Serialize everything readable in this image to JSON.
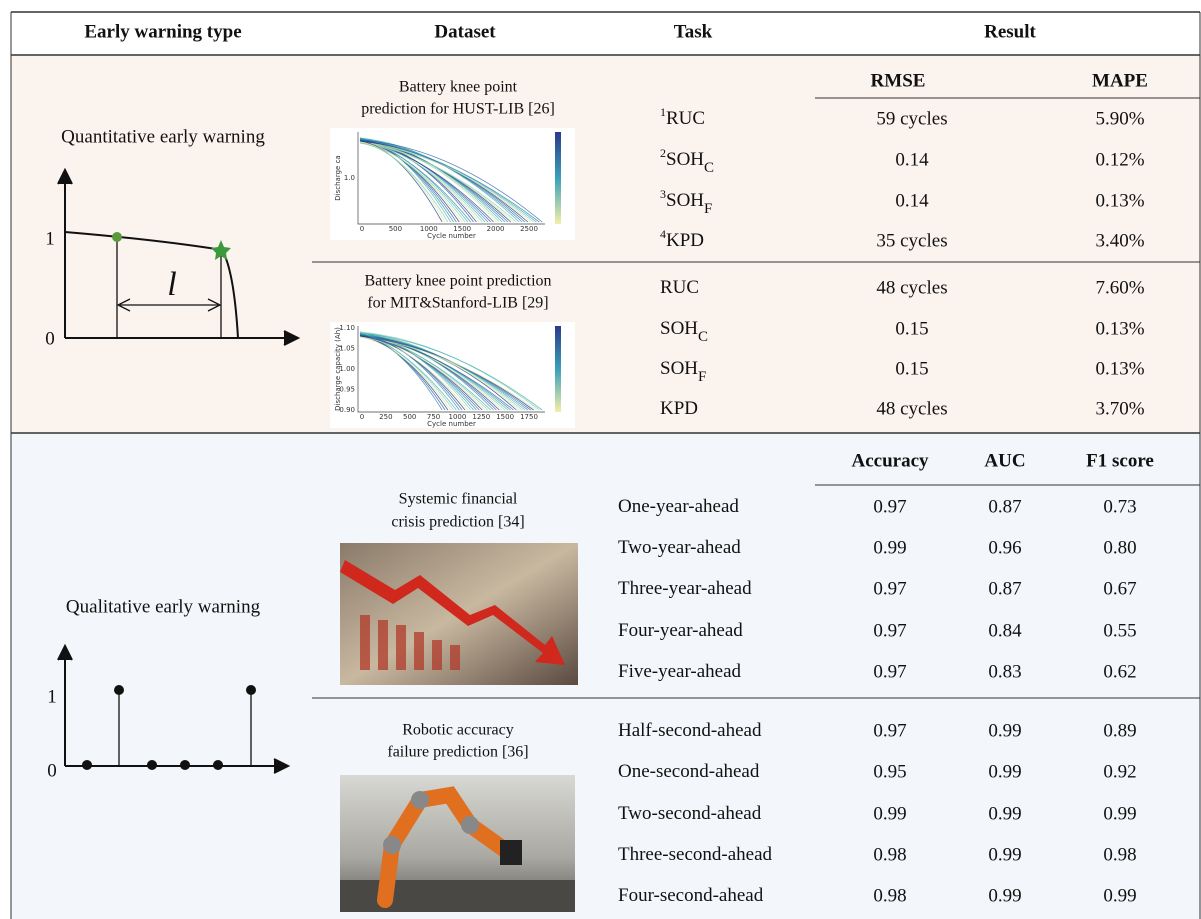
{
  "header": {
    "columns": [
      "Early warning type",
      "Dataset",
      "Task",
      "Result"
    ]
  },
  "quantitative": {
    "label": "Quantitative early warning",
    "diagram": {
      "y_high": "1",
      "y_low": "0",
      "interval": "l"
    },
    "metrics": [
      "RMSE",
      "MAPE"
    ],
    "datasets": [
      {
        "title": [
          "Battery knee point",
          "prediction for HUST-LIB [26]"
        ],
        "thumbnail": {
          "xlabel": "Cycle number",
          "ylabel": "Discharge ca",
          "xticks": [
            "0",
            "500",
            "1000",
            "1500",
            "2000",
            "2500"
          ],
          "yticks": [
            "1.0"
          ]
        },
        "rows": [
          {
            "task": {
              "note": "1",
              "name": "RUC"
            },
            "values": [
              "59 cycles",
              "5.90%"
            ]
          },
          {
            "task": {
              "note": "2",
              "name": "SOH",
              "sub": "C"
            },
            "values": [
              "0.14",
              "0.12%"
            ]
          },
          {
            "task": {
              "note": "3",
              "name": "SOH",
              "sub": "F"
            },
            "values": [
              "0.14",
              "0.13%"
            ]
          },
          {
            "task": {
              "note": "4",
              "name": "KPD"
            },
            "values": [
              "35 cycles",
              "3.40%"
            ]
          }
        ]
      },
      {
        "title": [
          "Battery knee point prediction",
          "for MIT&Stanford-LIB [29]"
        ],
        "thumbnail": {
          "xlabel": "Cycle number",
          "ylabel": "Discharge capacity (Ah)",
          "xticks": [
            "0",
            "250",
            "500",
            "750",
            "1000",
            "1250",
            "1500",
            "1750"
          ],
          "yticks": [
            "0.90",
            "0.95",
            "1.00",
            "1.05",
            "1.10"
          ]
        },
        "rows": [
          {
            "task": {
              "name": "RUC"
            },
            "values": [
              "48 cycles",
              "7.60%"
            ]
          },
          {
            "task": {
              "name": "SOH",
              "sub": "C"
            },
            "values": [
              "0.15",
              "0.13%"
            ]
          },
          {
            "task": {
              "name": "SOH",
              "sub": "F"
            },
            "values": [
              "0.15",
              "0.13%"
            ]
          },
          {
            "task": {
              "name": "KPD"
            },
            "values": [
              "48 cycles",
              "3.70%"
            ]
          }
        ]
      }
    ]
  },
  "qualitative": {
    "label": "Qualitative early warning",
    "diagram": {
      "y_high": "1",
      "y_low": "0"
    },
    "metrics": [
      "Accuracy",
      "AUC",
      "F1 score"
    ],
    "datasets": [
      {
        "title": [
          "Systemic financial",
          "crisis prediction [34]"
        ],
        "rows": [
          {
            "task": {
              "name": "One-year-ahead"
            },
            "values": [
              "0.97",
              "0.87",
              "0.73"
            ]
          },
          {
            "task": {
              "name": "Two-year-ahead"
            },
            "values": [
              "0.99",
              "0.96",
              "0.80"
            ]
          },
          {
            "task": {
              "name": "Three-year-ahead"
            },
            "values": [
              "0.97",
              "0.87",
              "0.67"
            ]
          },
          {
            "task": {
              "name": "Four-year-ahead"
            },
            "values": [
              "0.97",
              "0.84",
              "0.55"
            ]
          },
          {
            "task": {
              "name": "Five-year-ahead"
            },
            "values": [
              "0.97",
              "0.83",
              "0.62"
            ]
          }
        ]
      },
      {
        "title": [
          "Robotic accuracy",
          "failure prediction [36]"
        ],
        "rows": [
          {
            "task": {
              "name": "Half-second-ahead"
            },
            "values": [
              "0.97",
              "0.99",
              "0.89"
            ]
          },
          {
            "task": {
              "name": "One-second-ahead"
            },
            "values": [
              "0.95",
              "0.99",
              "0.92"
            ]
          },
          {
            "task": {
              "name": "Two-second-ahead"
            },
            "values": [
              "0.99",
              "0.99",
              "0.99"
            ]
          },
          {
            "task": {
              "name": "Three-second-ahead"
            },
            "values": [
              "0.98",
              "0.99",
              "0.98"
            ]
          },
          {
            "task": {
              "name": "Four-second-ahead"
            },
            "values": [
              "0.98",
              "0.99",
              "0.99"
            ]
          }
        ]
      }
    ]
  }
}
